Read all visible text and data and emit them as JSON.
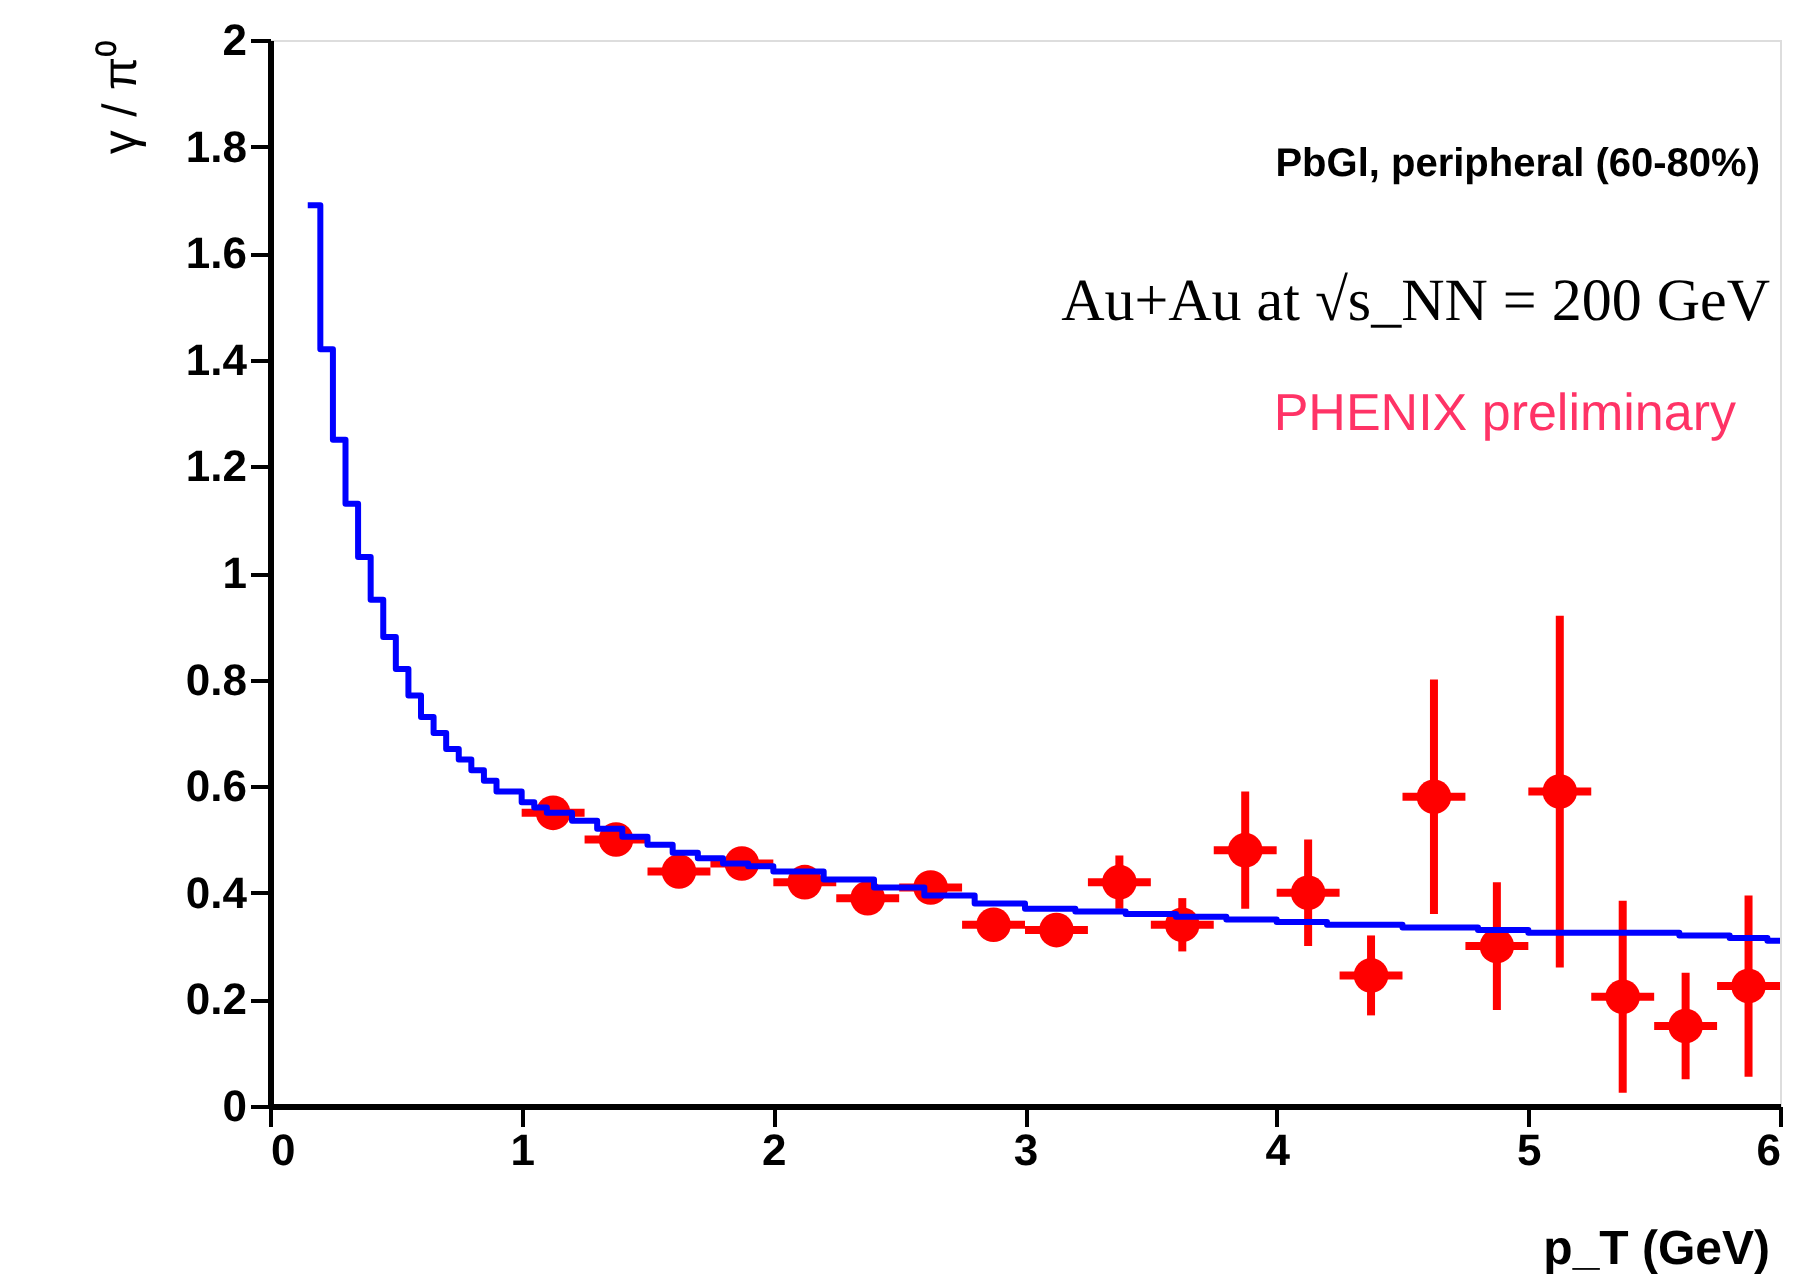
{
  "chart_data": {
    "type": "scatter",
    "xlabel": "p_T (GeV)",
    "ylabel": "γ / π⁰",
    "annotations": [
      "PbGl,  peripheral (60-80%)",
      "Au+Au at √s_NN = 200 GeV",
      "PHENIX preliminary"
    ],
    "xlim": [
      0,
      6
    ],
    "ylim": [
      0,
      2
    ],
    "xticks": [
      0,
      1,
      2,
      3,
      4,
      5,
      6
    ],
    "yticks": [
      0,
      0.2,
      0.4,
      0.6,
      0.8,
      1,
      1.2,
      1.4,
      1.6,
      1.8,
      2
    ],
    "grid": false,
    "series": [
      {
        "color": "#ff0000",
        "marker": "circle",
        "x": [
          1.125,
          1.375,
          1.625,
          1.875,
          2.125,
          2.375,
          2.625,
          2.875,
          3.125,
          3.375,
          3.625,
          3.875,
          4.125,
          4.375,
          4.625,
          4.875,
          5.125,
          5.375,
          5.625,
          5.875
        ],
        "values": [
          0.55,
          0.5,
          0.44,
          0.455,
          0.42,
          0.39,
          0.41,
          0.34,
          0.33,
          0.42,
          0.34,
          0.48,
          0.4,
          0.245,
          0.58,
          0.3,
          0.59,
          0.205,
          0.15,
          0.225
        ],
        "errors": [
          null,
          null,
          null,
          null,
          null,
          null,
          null,
          null,
          null,
          0.05,
          0.05,
          0.11,
          0.1,
          0.075,
          0.22,
          0.12,
          0.33,
          0.18,
          0.1,
          0.17
        ],
        "xerrors": [
          0.125,
          0.125,
          0.125,
          0.125,
          0.125,
          0.125,
          0.125,
          0.125,
          0.125,
          0.125,
          0.125,
          0.125,
          0.125,
          0.125,
          0.125,
          0.125,
          0.125,
          0.125,
          0.125,
          0.125
        ]
      },
      {
        "type": "step",
        "color": "#0000ff",
        "x": [
          0.15,
          0.2,
          0.25,
          0.3,
          0.35,
          0.4,
          0.45,
          0.5,
          0.55,
          0.6,
          0.65,
          0.7,
          0.75,
          0.8,
          0.85,
          0.9,
          1.0,
          1.05,
          1.1,
          1.2,
          1.3,
          1.4,
          1.5,
          1.6,
          1.7,
          1.8,
          1.9,
          2.0,
          2.2,
          2.4,
          2.6,
          2.8,
          3.0,
          3.2,
          3.4,
          3.6,
          3.8,
          4.0,
          4.2,
          4.5,
          4.8,
          5.0,
          5.3,
          5.6,
          5.8,
          5.95,
          6.0
        ],
        "values": [
          1.69,
          1.42,
          1.25,
          1.13,
          1.03,
          0.95,
          0.88,
          0.82,
          0.77,
          0.73,
          0.7,
          0.67,
          0.65,
          0.63,
          0.61,
          0.59,
          0.57,
          0.56,
          0.55,
          0.535,
          0.52,
          0.505,
          0.49,
          0.475,
          0.465,
          0.455,
          0.45,
          0.44,
          0.425,
          0.41,
          0.395,
          0.38,
          0.37,
          0.365,
          0.36,
          0.355,
          0.35,
          0.345,
          0.34,
          0.335,
          0.33,
          0.325,
          0.325,
          0.32,
          0.315,
          0.31,
          0.31
        ]
      }
    ]
  }
}
